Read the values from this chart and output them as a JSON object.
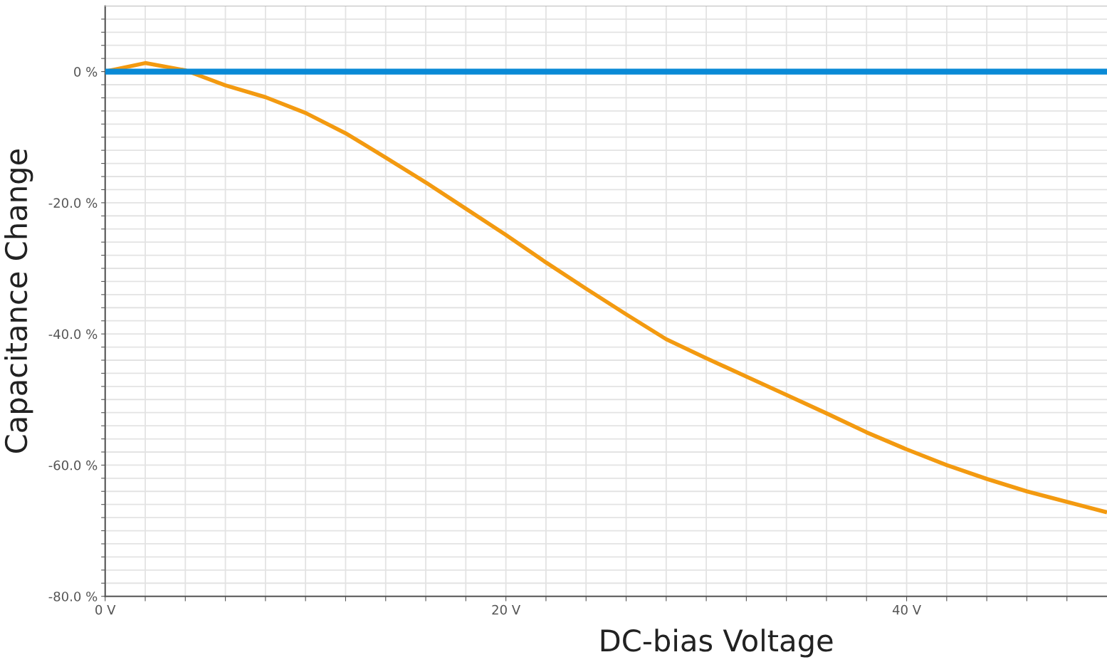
{
  "chart_data": {
    "type": "line",
    "xlabel": "DC-bias Voltage",
    "ylabel": "Capacitance Change",
    "x": [
      0,
      2,
      4,
      6,
      8,
      10,
      12,
      14,
      16,
      18,
      20,
      22,
      24,
      26,
      28,
      30,
      32,
      34,
      36,
      38,
      40,
      42,
      44,
      46,
      48,
      50
    ],
    "series": [
      {
        "color": "#0a8ad6",
        "values": [
          0,
          0,
          0,
          0,
          0,
          0,
          0,
          0,
          0,
          0,
          0,
          0,
          0,
          0,
          0,
          0,
          0,
          0,
          0,
          0,
          0,
          0,
          0,
          0,
          0,
          0
        ]
      },
      {
        "color": "#f39a10",
        "values": [
          0,
          1.3,
          0.2,
          -2.1,
          -3.9,
          -6.3,
          -9.4,
          -13.1,
          -16.9,
          -20.9,
          -24.9,
          -29.1,
          -33.1,
          -37.0,
          -40.8,
          -43.7,
          -46.5,
          -49.3,
          -52.1,
          -55.0,
          -57.6,
          -60.0,
          -62.1,
          -64.0,
          -65.6,
          -67.2
        ]
      }
    ],
    "xlim": [
      0,
      50
    ],
    "ylim": [
      -80,
      10
    ],
    "xticks": [
      {
        "value": 0,
        "label": "0 V"
      },
      {
        "value": 2,
        "label": null
      },
      {
        "value": 4,
        "label": null
      },
      {
        "value": 6,
        "label": null
      },
      {
        "value": 8,
        "label": null
      },
      {
        "value": 10,
        "label": null
      },
      {
        "value": 12,
        "label": null
      },
      {
        "value": 14,
        "label": null
      },
      {
        "value": 16,
        "label": null
      },
      {
        "value": 18,
        "label": null
      },
      {
        "value": 20,
        "label": "20 V"
      },
      {
        "value": 22,
        "label": null
      },
      {
        "value": 24,
        "label": null
      },
      {
        "value": 26,
        "label": null
      },
      {
        "value": 28,
        "label": null
      },
      {
        "value": 30,
        "label": null
      },
      {
        "value": 32,
        "label": null
      },
      {
        "value": 34,
        "label": null
      },
      {
        "value": 36,
        "label": null
      },
      {
        "value": 38,
        "label": null
      },
      {
        "value": 40,
        "label": "40 V"
      },
      {
        "value": 42,
        "label": null
      },
      {
        "value": 44,
        "label": null
      },
      {
        "value": 46,
        "label": null
      },
      {
        "value": 48,
        "label": null
      }
    ],
    "yticks": [
      {
        "value": -80,
        "label": "-80.0 %"
      },
      {
        "value": -78,
        "label": null
      },
      {
        "value": -76,
        "label": null
      },
      {
        "value": -74,
        "label": null
      },
      {
        "value": -72,
        "label": null
      },
      {
        "value": -70,
        "label": null
      },
      {
        "value": -68,
        "label": null
      },
      {
        "value": -66,
        "label": null
      },
      {
        "value": -64,
        "label": null
      },
      {
        "value": -62,
        "label": null
      },
      {
        "value": -60,
        "label": "-60.0 %"
      },
      {
        "value": -58,
        "label": null
      },
      {
        "value": -56,
        "label": null
      },
      {
        "value": -54,
        "label": null
      },
      {
        "value": -52,
        "label": null
      },
      {
        "value": -50,
        "label": null
      },
      {
        "value": -48,
        "label": null
      },
      {
        "value": -46,
        "label": null
      },
      {
        "value": -44,
        "label": null
      },
      {
        "value": -42,
        "label": null
      },
      {
        "value": -40,
        "label": "-40.0 %"
      },
      {
        "value": -38,
        "label": null
      },
      {
        "value": -36,
        "label": null
      },
      {
        "value": -34,
        "label": null
      },
      {
        "value": -32,
        "label": null
      },
      {
        "value": -30,
        "label": null
      },
      {
        "value": -28,
        "label": null
      },
      {
        "value": -26,
        "label": null
      },
      {
        "value": -24,
        "label": null
      },
      {
        "value": -22,
        "label": null
      },
      {
        "value": -20,
        "label": "-20.0 %"
      },
      {
        "value": -18,
        "label": null
      },
      {
        "value": -16,
        "label": null
      },
      {
        "value": -14,
        "label": null
      },
      {
        "value": -12,
        "label": null
      },
      {
        "value": -10,
        "label": null
      },
      {
        "value": -8,
        "label": null
      },
      {
        "value": -6,
        "label": null
      },
      {
        "value": -4,
        "label": null
      },
      {
        "value": -2,
        "label": null
      },
      {
        "value": 0,
        "label": "0 %"
      },
      {
        "value": 2,
        "label": null
      },
      {
        "value": 4,
        "label": null
      },
      {
        "value": 6,
        "label": null
      },
      {
        "value": 8,
        "label": null
      }
    ],
    "grid": true,
    "legend": false
  }
}
